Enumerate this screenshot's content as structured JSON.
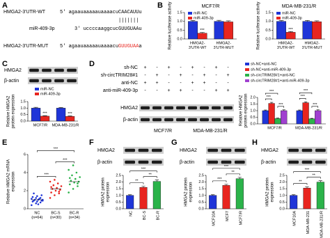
{
  "panel_labels": [
    "A",
    "B",
    "C",
    "D",
    "E",
    "F",
    "G",
    "H"
  ],
  "panel_a": {
    "wt_label": "HMGA2-3'UTR-WT",
    "wt_seq": "5' agaauaaaaauaaaacu",
    "wt_site": "CAACAUU",
    "wt_end": "u",
    "pairing": "|||||||",
    "mir_label": "miR-409-3p",
    "mir_seq": "3' uccccaaggcuc",
    "mir_site": "GUUGUAA",
    "mir_end": "u",
    "mut_label": "HMGA2-3'UTR-MUT",
    "mut_seq": "5' agaauaaaaauaaaacu",
    "mut_site": "GUUGUAA",
    "mut_end": "a"
  },
  "chart_data": [
    {
      "type": "bar",
      "title": "MCF7/R",
      "ylabel": "Relative luciferase activity",
      "ylim": [
        0,
        1.5
      ],
      "yticks": [
        {
          "value": 0,
          "label": "0.0"
        },
        0.5,
        {
          "value": 1,
          "label": "1.0"
        },
        1.5
      ],
      "categories": [
        [
          "HMGA2-",
          "3'UTR-WT"
        ],
        [
          "HMGA2-",
          "3'UTR-MUT"
        ]
      ],
      "series": [
        {
          "name": "miR-NC",
          "color": "#1f35d8",
          "values": [
            1.0,
            1.0
          ],
          "errors": [
            0.05,
            0.06
          ]
        },
        {
          "name": "miR-409-3p",
          "color": "#e8251f",
          "values": [
            0.33,
            0.97
          ],
          "errors": [
            0.04,
            0.06
          ]
        }
      ],
      "annotations": [
        "***"
      ]
    },
    {
      "type": "bar",
      "title": "MDA-MB-231/R",
      "ylabel": "Relative luciferase activity",
      "ylim": [
        0,
        1.5
      ],
      "yticks": [
        {
          "value": 0,
          "label": "0.0"
        },
        0.5,
        {
          "value": 1,
          "label": "1.0"
        },
        1.5
      ],
      "categories": [
        [
          "HMGA2-",
          "3'UTR-WT"
        ],
        [
          "HMGA2-",
          "3'UTR-MUT"
        ]
      ],
      "series": [
        {
          "name": "miR-NC",
          "color": "#1f35d8",
          "values": [
            1.0,
            1.0
          ],
          "errors": [
            0.05,
            0.05
          ]
        },
        {
          "name": "miR-409-3p",
          "color": "#e8251f",
          "values": [
            0.38,
            0.98
          ],
          "errors": [
            0.04,
            0.05
          ]
        }
      ],
      "annotations": [
        "***"
      ]
    },
    {
      "type": "bar",
      "blot_labels": [
        "HMGA2",
        "β-actin"
      ],
      "ylabel": [
        "Relative HMGA2",
        "protein expression"
      ],
      "ylim": [
        0,
        1.5
      ],
      "yticks": [
        {
          "value": 0,
          "label": "0.0"
        },
        0.5,
        {
          "value": 1,
          "label": "1.0"
        },
        1.5
      ],
      "categories": [
        "MCF7/R",
        "MDA-MB-231/R"
      ],
      "series": [
        {
          "name": "miR-NC",
          "color": "#1f35d8",
          "values": [
            1.0,
            1.0
          ],
          "errors": [
            0.06,
            0.05
          ]
        },
        {
          "name": "miR-409-3p",
          "color": "#e8251f",
          "values": [
            0.38,
            0.36
          ],
          "errors": [
            0.04,
            0.04
          ]
        }
      ],
      "annotations": [
        "***",
        "***"
      ]
    },
    {
      "type": "bar",
      "treatments": [
        {
          "label": "sh-NC",
          "marks": [
            "+",
            "-",
            "+",
            "-",
            "+",
            "-",
            "+",
            "-"
          ]
        },
        {
          "label": "sh-circTRIM28#1",
          "marks": [
            "-",
            "+",
            "-",
            "+",
            "-",
            "+",
            "-",
            "+"
          ]
        },
        {
          "label": "anti-NC",
          "marks": [
            "+",
            "+",
            "-",
            "-",
            "+",
            "+",
            "-",
            "-"
          ]
        },
        {
          "label": "anti-miR-409-3p",
          "marks": [
            "-",
            "-",
            "+",
            "+",
            "-",
            "-",
            "+",
            "+"
          ]
        }
      ],
      "blot_labels": [
        "HMGA2",
        "β-actin"
      ],
      "blot_groups": [
        "MCF7/R",
        "MDA-MB-231/R"
      ],
      "ylabel": [
        "Relative HMGA2",
        "protein expression"
      ],
      "ylim": [
        0,
        2
      ],
      "yticks": [
        {
          "value": 0,
          "label": "0.0"
        },
        0.5,
        {
          "value": 1,
          "label": "1.0"
        },
        1.5,
        {
          "value": 2,
          "label": "2.0"
        }
      ],
      "categories": [
        "MCF7/R",
        "MDA-MB-231/R"
      ],
      "series": [
        {
          "name": "sh-NC+anti-NC",
          "color": "#1f35d8",
          "values": [
            1.0,
            1.0
          ],
          "errors": [
            0.05,
            0.05
          ]
        },
        {
          "name": "sh-NC+anti-miR-409-3p",
          "color": "#e8251f",
          "values": [
            1.55,
            1.6
          ],
          "errors": [
            0.08,
            0.07
          ]
        },
        {
          "name": "sh-circTRIM28#1+anti-NC",
          "color": "#2bb34a",
          "values": [
            0.4,
            0.38
          ],
          "errors": [
            0.04,
            0.04
          ]
        },
        {
          "name": "sh-circTRIM28#1+anti-miR-409-3p",
          "color": "#a040d0",
          "values": [
            1.0,
            1.0
          ],
          "errors": [
            0.06,
            0.06
          ]
        }
      ],
      "annotations": [
        "***",
        "***",
        "***",
        "***",
        "***",
        "***"
      ]
    },
    {
      "type": "dot",
      "ylabel": [
        "Relative HMGA2 mRNA",
        "expression"
      ],
      "ylim": [
        0,
        6
      ],
      "yticks": [
        0,
        2,
        4,
        6
      ],
      "categories": [
        [
          "NC",
          "(n=64)"
        ],
        [
          "BC-S",
          "(n=30)"
        ],
        [
          "BC-R",
          "(n=34)"
        ]
      ],
      "colors": [
        "#1f35d8",
        "#e8251f",
        "#2bb34a"
      ],
      "values": [
        [
          0.4,
          0.6,
          0.7,
          0.8,
          0.8,
          0.9,
          0.9,
          1.0,
          1.0,
          1.0,
          1.1,
          1.1,
          1.2,
          1.2,
          1.3,
          1.4,
          1.5,
          1.7,
          0.5,
          0.9
        ],
        [
          1.2,
          1.5,
          1.7,
          1.8,
          2.0,
          2.1,
          2.2,
          2.3,
          2.5,
          2.6,
          2.8,
          3.0,
          3.2,
          1.9,
          2.4
        ],
        [
          1.8,
          2.2,
          2.5,
          2.7,
          2.9,
          3.0,
          3.1,
          3.3,
          3.5,
          3.7,
          4.0,
          4.3,
          4.8,
          2.8,
          3.4
        ]
      ],
      "means": [
        1.0,
        2.2,
        3.0
      ],
      "annotations": [
        "***",
        "***",
        "***"
      ]
    },
    {
      "type": "bar",
      "blot_labels": [
        "HMGA2",
        "β-actin"
      ],
      "ylabel": [
        "HMGA2 protein",
        "expression"
      ],
      "ylim": [
        0,
        2.5
      ],
      "yticks": [
        {
          "value": 0,
          "label": "0.0"
        },
        0.5,
        {
          "value": 1,
          "label": "1.0"
        },
        1.5,
        {
          "value": 2,
          "label": "2.0"
        },
        2.5
      ],
      "categories": [
        "NC",
        "BC-S",
        "BC-R"
      ],
      "colors": [
        "#1f35d8",
        "#e8251f",
        "#2bb34a"
      ],
      "values": [
        1.0,
        1.6,
        2.05
      ],
      "errors": [
        0.05,
        0.08,
        0.1
      ],
      "annotations": [
        "***",
        "**",
        "**"
      ]
    },
    {
      "type": "bar",
      "blot_labels": [
        "HMGA2",
        "β-actin"
      ],
      "ylabel": [
        "HMGA2 protein",
        "expression"
      ],
      "ylim": [
        0,
        2.5
      ],
      "yticks": [
        {
          "value": 0,
          "label": "0.0"
        },
        0.5,
        {
          "value": 1,
          "label": "1.0"
        },
        1.5,
        {
          "value": 2,
          "label": "2.0"
        },
        2.5
      ],
      "categories": [
        "MCF10A",
        "MCF7",
        "MCF7/R"
      ],
      "colors": [
        "#1f35d8",
        "#e8251f",
        "#2bb34a"
      ],
      "values": [
        1.0,
        1.75,
        2.25
      ],
      "errors": [
        0.05,
        0.08,
        0.1
      ],
      "annotations": [
        "***",
        "**",
        "***"
      ]
    },
    {
      "type": "bar",
      "blot_labels": [
        "HMGA2",
        "β-actin"
      ],
      "ylabel": [
        "HMGA2 protein",
        "expression"
      ],
      "ylim": [
        0,
        2.5
      ],
      "yticks": [
        {
          "value": 0,
          "label": "0.0"
        },
        0.5,
        {
          "value": 1,
          "label": "1.0"
        },
        1.5,
        {
          "value": 2,
          "label": "2.0"
        },
        2.5
      ],
      "categories": [
        "MCF10A",
        "MDA-MB-231",
        "MDA-MB-231/R"
      ],
      "colors": [
        "#1f35d8",
        "#e8251f",
        "#2bb34a"
      ],
      "values": [
        1.0,
        1.55,
        2.0
      ],
      "errors": [
        0.05,
        0.08,
        0.1
      ],
      "annotations": [
        "***",
        "**",
        "**"
      ]
    }
  ]
}
